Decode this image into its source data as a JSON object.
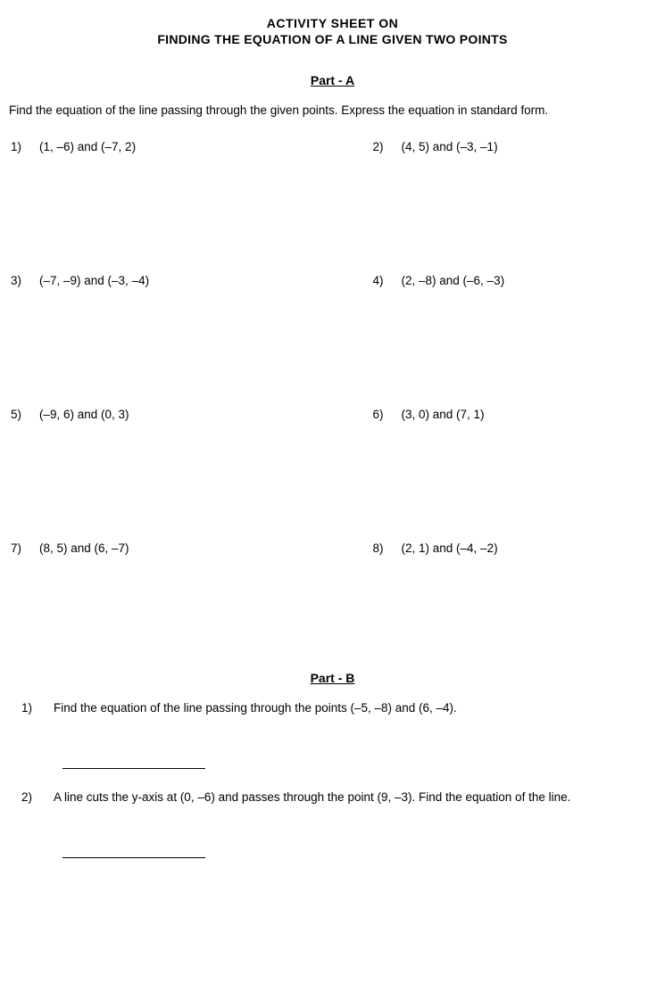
{
  "title": {
    "line1": "ACTIVITY SHEET  ON",
    "line2": "FINDING THE EQUATION OF A LINE GIVEN TWO POINTS"
  },
  "partA": {
    "header": "Part - A",
    "instruction": "Find the equation of the line passing through the given points. Express the equation in standard form.",
    "problems": [
      {
        "num": "1)",
        "text": "(1, –6) and (–7, 2)"
      },
      {
        "num": "2)",
        "text": "(4, 5) and (–3, –1)"
      },
      {
        "num": "3)",
        "text": "(–7, –9) and (–3, –4)"
      },
      {
        "num": "4)",
        "text": "(2, –8) and (–6, –3)"
      },
      {
        "num": "5)",
        "text": "(–9, 6) and (0, 3)"
      },
      {
        "num": "6)",
        "text": "(3, 0) and (7, 1)"
      },
      {
        "num": "7)",
        "text": "(8, 5) and (6, –7)"
      },
      {
        "num": "8)",
        "text": "(2, 1) and (–4, –2)"
      }
    ]
  },
  "partB": {
    "header": "Part - B",
    "items": [
      {
        "num": "1)",
        "text": "Find the equation of the line passing through the points (–5, –8) and (6, –4)."
      },
      {
        "num": "2)",
        "text": "A line cuts the y-axis at (0, –6) and passes through the point (9, –3). Find the equation of the line."
      }
    ]
  }
}
